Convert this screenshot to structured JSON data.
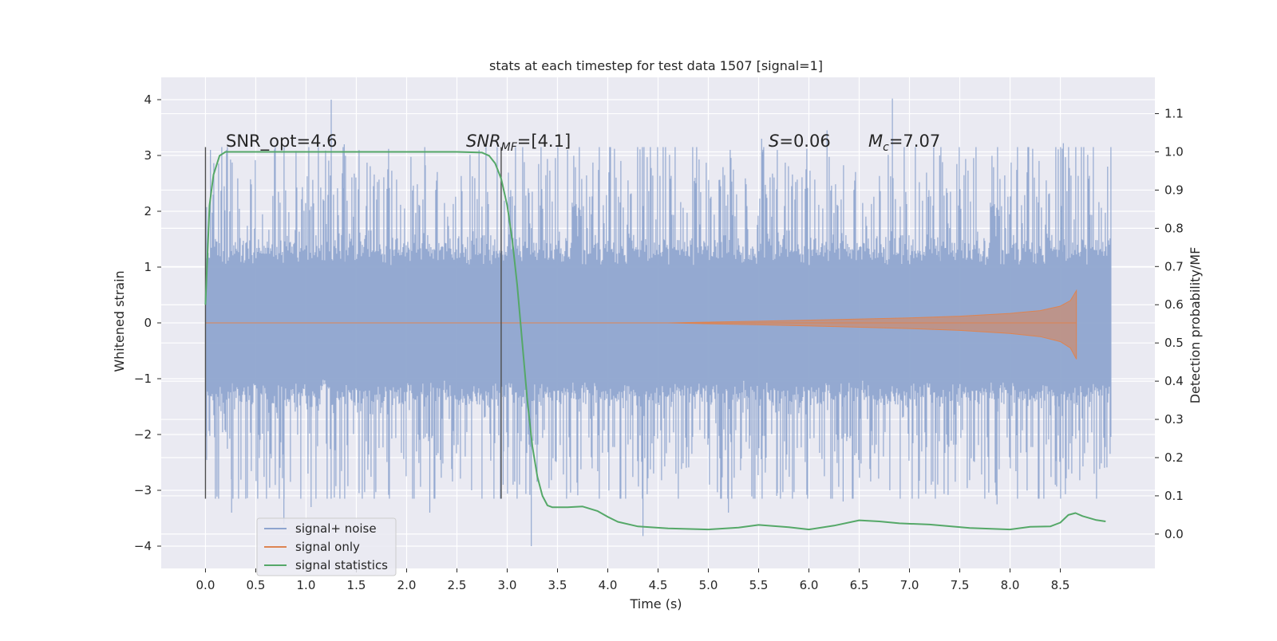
{
  "chart_data": {
    "type": "line",
    "title": "stats at each timestep for test data 1507 [signal=1]",
    "xlabel": "Time (s)",
    "ylabel": "Whitened strain",
    "ylabel_right": "Detection probability/MF",
    "xlim": [
      -0.44,
      9.44
    ],
    "ylim": [
      -4.4,
      4.4
    ],
    "ylim_right": [
      -0.09,
      1.195
    ],
    "x_ticks": [
      "0.0",
      "0.5",
      "1.0",
      "1.5",
      "2.0",
      "2.5",
      "3.0",
      "3.5",
      "4.0",
      "4.5",
      "5.0",
      "5.5",
      "6.0",
      "6.5",
      "7.0",
      "7.5",
      "8.0",
      "8.5"
    ],
    "y_ticks": [
      "4",
      "3",
      "2",
      "1",
      "0",
      "−1",
      "−2",
      "−3",
      "−4"
    ],
    "y_ticks_right": [
      "1.1",
      "1.0",
      "0.9",
      "0.8",
      "0.7",
      "0.6",
      "0.5",
      "0.4",
      "0.3",
      "0.2",
      "0.1",
      "0.0"
    ],
    "grid": true,
    "legend_position": "lower-left",
    "legend": [
      {
        "label": "signal+ noise",
        "color": "#8fa5cf"
      },
      {
        "label": "signal only",
        "color": "#dd8452"
      },
      {
        "label": "signal statistics",
        "color": "#55a868"
      }
    ],
    "annotations": {
      "snr_opt": "SNR_opt=4.6",
      "snr_mf_base": "SNR",
      "snr_mf_sub": "MF",
      "snr_mf_rest": "=[4.1]",
      "s_base": "S",
      "s_rest": "=0.06",
      "mc_base": "M",
      "mc_sub": "c",
      "mc_rest": "=7.07"
    },
    "vertical_markers_x": [
      0.0,
      2.94
    ],
    "series": [
      {
        "name": "signal+ noise",
        "color": "#8fa5cf",
        "x_range": [
          0.0,
          9.0
        ],
        "envelope_typical": 1.3,
        "envelope_frequent": 1.9,
        "peaks_up": [
          [
            1.25,
            4.0
          ],
          [
            6.83,
            4.02
          ],
          [
            0.21,
            3.1
          ],
          [
            1.38,
            3.2
          ],
          [
            2.18,
            3.15
          ],
          [
            3.6,
            3.1
          ],
          [
            4.36,
            3.15
          ],
          [
            5.53,
            3.3
          ],
          [
            6.18,
            3.45
          ],
          [
            8.53,
            3.22
          ],
          [
            2.72,
            3.1
          ],
          [
            7.3,
            3.0
          ],
          [
            0.05,
            3.1
          ],
          [
            8.97,
            2.8
          ]
        ],
        "peaks_down": [
          [
            3.24,
            -4.0
          ],
          [
            4.35,
            -3.82
          ],
          [
            0.78,
            -3.6
          ],
          [
            2.23,
            -3.4
          ],
          [
            5.2,
            -3.4
          ],
          [
            7.87,
            -3.25
          ],
          [
            0.26,
            -3.4
          ],
          [
            1.05,
            -3.3
          ],
          [
            6.34,
            -3.2
          ],
          [
            2.96,
            -2.9
          ],
          [
            8.45,
            -2.9
          ],
          [
            5.68,
            -3.1
          ]
        ]
      },
      {
        "name": "signal only",
        "color": "#dd8452",
        "x": [
          0.0,
          4.6,
          5.5,
          6.3,
          7.0,
          7.5,
          8.0,
          8.3,
          8.5,
          8.6,
          8.66
        ],
        "amplitude": [
          0.0,
          0.0,
          0.03,
          0.06,
          0.09,
          0.12,
          0.17,
          0.22,
          0.3,
          0.4,
          0.58
        ]
      },
      {
        "name": "signal statistics",
        "color": "#55a868",
        "x": [
          0.0,
          0.04,
          0.08,
          0.14,
          0.2,
          0.3,
          0.5,
          1.0,
          1.5,
          2.0,
          2.5,
          2.75,
          2.82,
          2.88,
          2.94,
          3.0,
          3.05,
          3.1,
          3.15,
          3.2,
          3.25,
          3.3,
          3.35,
          3.4,
          3.45,
          3.5,
          3.6,
          3.75,
          3.9,
          4.0,
          4.1,
          4.3,
          4.6,
          5.0,
          5.3,
          5.5,
          5.8,
          6.0,
          6.25,
          6.5,
          6.7,
          6.9,
          7.2,
          7.6,
          8.0,
          8.2,
          8.4,
          8.5,
          8.58,
          8.65,
          8.72,
          8.85,
          8.95
        ],
        "y": [
          0.6,
          0.86,
          0.94,
          0.99,
          1.0,
          1.0,
          1.0,
          1.0,
          1.0,
          1.0,
          1.0,
          0.998,
          0.99,
          0.97,
          0.93,
          0.86,
          0.77,
          0.65,
          0.5,
          0.35,
          0.23,
          0.15,
          0.1,
          0.075,
          0.07,
          0.07,
          0.07,
          0.072,
          0.06,
          0.045,
          0.032,
          0.02,
          0.015,
          0.012,
          0.017,
          0.024,
          0.018,
          0.012,
          0.022,
          0.036,
          0.033,
          0.028,
          0.025,
          0.016,
          0.012,
          0.019,
          0.02,
          0.03,
          0.05,
          0.055,
          0.047,
          0.037,
          0.033
        ]
      }
    ]
  }
}
